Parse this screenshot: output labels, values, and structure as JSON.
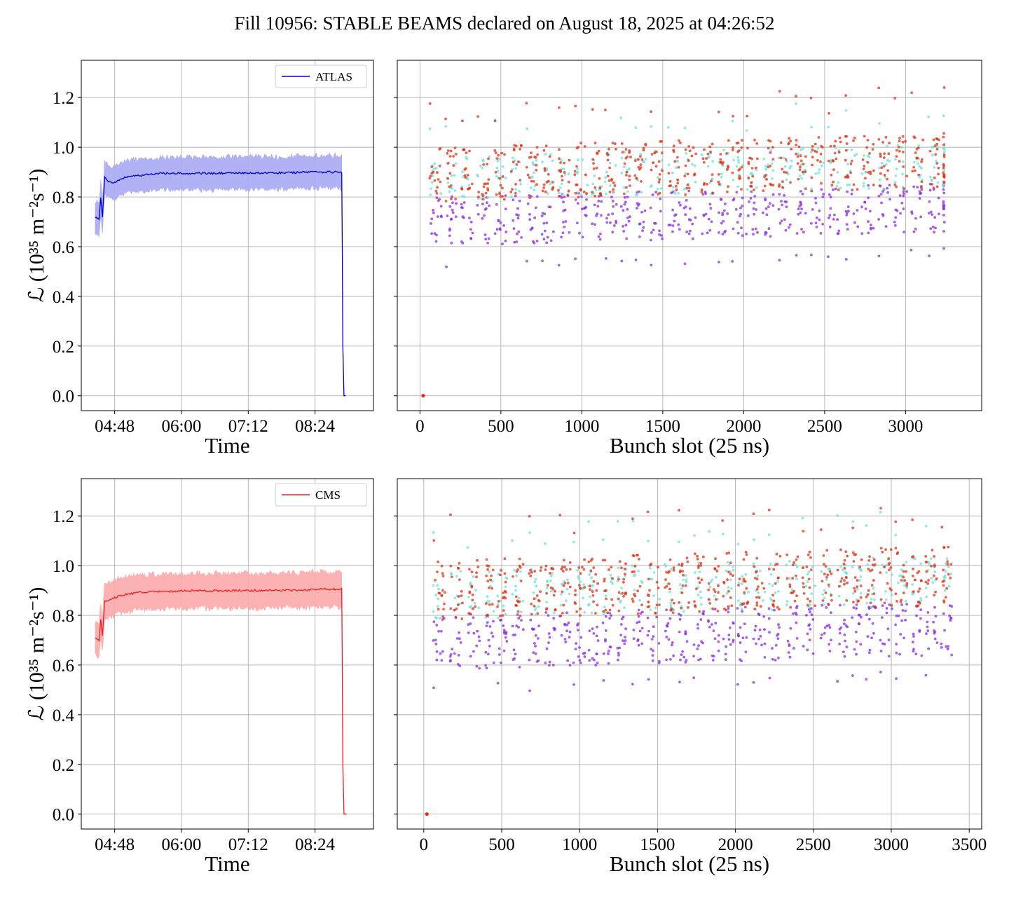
{
  "figure": {
    "title": "Fill 10956: STABLE BEAMS declared on August 18, 2025 at 04:26:52"
  },
  "colors": {
    "atlas": "#0000cc",
    "atlas_band": "#a9a9f5",
    "cms": "#e82020",
    "cms_band": "#fcaaaa",
    "scatter_purple": "#8a2be2",
    "scatter_cyan": "#6ee0d8",
    "scatter_red": "#e03010",
    "grid": "#b0b0b0"
  },
  "chart_data": [
    {
      "id": "atlas-time",
      "type": "line",
      "series": [
        {
          "name": "ATLAS",
          "color": "#0000cc",
          "band_color": "#a9a9f5"
        }
      ],
      "legend": "top-right",
      "xlabel": "Time",
      "ylabel": "ℒ (10³⁵ m⁻²s⁻¹)",
      "x_unit": "hours since 04:00",
      "xticks": [
        {
          "v": 0.8,
          "label": "04:48"
        },
        {
          "v": 2.0,
          "label": "06:00"
        },
        {
          "v": 3.2,
          "label": "07:12"
        },
        {
          "v": 4.4,
          "label": "08:24"
        }
      ],
      "yticks": [
        0.0,
        0.2,
        0.4,
        0.6,
        0.8,
        1.0,
        1.2
      ],
      "xlim": [
        0.2,
        5.45
      ],
      "ylim": [
        -0.06,
        1.35
      ],
      "points": [
        [
          0.45,
          0.72
        ],
        [
          0.52,
          0.71
        ],
        [
          0.55,
          0.8
        ],
        [
          0.58,
          0.72
        ],
        [
          0.62,
          0.88
        ],
        [
          0.7,
          0.86
        ],
        [
          0.8,
          0.86
        ],
        [
          0.9,
          0.87
        ],
        [
          1.0,
          0.88
        ],
        [
          1.2,
          0.885
        ],
        [
          1.4,
          0.89
        ],
        [
          1.7,
          0.895
        ],
        [
          2.0,
          0.895
        ],
        [
          2.5,
          0.895
        ],
        [
          3.0,
          0.897
        ],
        [
          3.5,
          0.897
        ],
        [
          4.0,
          0.898
        ],
        [
          4.5,
          0.9
        ],
        [
          4.88,
          0.9
        ],
        [
          4.89,
          0.6
        ],
        [
          4.9,
          0.2
        ],
        [
          4.92,
          0.0
        ],
        [
          4.95,
          0.0
        ]
      ],
      "band_half_width": 0.065
    },
    {
      "id": "atlas-bunch",
      "type": "scatter",
      "xlabel": "Bunch slot (25 ns)",
      "xticks": [
        0,
        500,
        1000,
        1500,
        2000,
        2500,
        3000
      ],
      "xlim": [
        -140,
        3470
      ],
      "ylim": [
        -0.06,
        1.35
      ],
      "last_slot": 3240,
      "ranges": {
        "purple": [
          0.6,
          0.8
        ],
        "cyan": [
          0.78,
          0.96
        ],
        "red": [
          0.78,
          1.0
        ]
      },
      "zero_point": [
        20,
        0.0
      ]
    },
    {
      "id": "cms-time",
      "type": "line",
      "series": [
        {
          "name": "CMS",
          "color": "#e82020",
          "band_color": "#fcaaaa"
        }
      ],
      "legend": "top-right",
      "xlabel": "Time",
      "ylabel": "ℒ (10³⁵ m⁻²s⁻¹)",
      "x_unit": "hours since 04:00",
      "xticks": [
        {
          "v": 0.8,
          "label": "04:48"
        },
        {
          "v": 2.0,
          "label": "06:00"
        },
        {
          "v": 3.2,
          "label": "07:12"
        },
        {
          "v": 4.4,
          "label": "08:24"
        }
      ],
      "yticks": [
        0.0,
        0.2,
        0.4,
        0.6,
        0.8,
        1.0,
        1.2
      ],
      "xlim": [
        0.2,
        5.45
      ],
      "ylim": [
        -0.06,
        1.35
      ],
      "points": [
        [
          0.45,
          0.71
        ],
        [
          0.52,
          0.7
        ],
        [
          0.55,
          0.78
        ],
        [
          0.58,
          0.72
        ],
        [
          0.62,
          0.86
        ],
        [
          0.7,
          0.86
        ],
        [
          0.8,
          0.87
        ],
        [
          0.9,
          0.88
        ],
        [
          1.0,
          0.885
        ],
        [
          1.2,
          0.89
        ],
        [
          1.4,
          0.895
        ],
        [
          1.7,
          0.895
        ],
        [
          2.0,
          0.898
        ],
        [
          2.5,
          0.898
        ],
        [
          3.0,
          0.9
        ],
        [
          3.5,
          0.9
        ],
        [
          4.0,
          0.9
        ],
        [
          4.5,
          0.905
        ],
        [
          4.88,
          0.905
        ],
        [
          4.89,
          0.6
        ],
        [
          4.9,
          0.2
        ],
        [
          4.92,
          0.0
        ],
        [
          4.97,
          0.0
        ]
      ],
      "band_half_width": 0.07
    },
    {
      "id": "cms-bunch",
      "type": "scatter",
      "xlabel": "Bunch slot (25 ns)",
      "xticks": [
        0,
        500,
        1000,
        1500,
        2000,
        2500,
        3000,
        3500
      ],
      "xlim": [
        -170,
        3580
      ],
      "ylim": [
        -0.06,
        1.35
      ],
      "last_slot": 3410,
      "ranges": {
        "purple": [
          0.58,
          0.8
        ],
        "cyan": [
          0.78,
          0.98
        ],
        "red": [
          0.78,
          1.02
        ]
      },
      "zero_point": [
        20,
        0.0
      ]
    }
  ]
}
